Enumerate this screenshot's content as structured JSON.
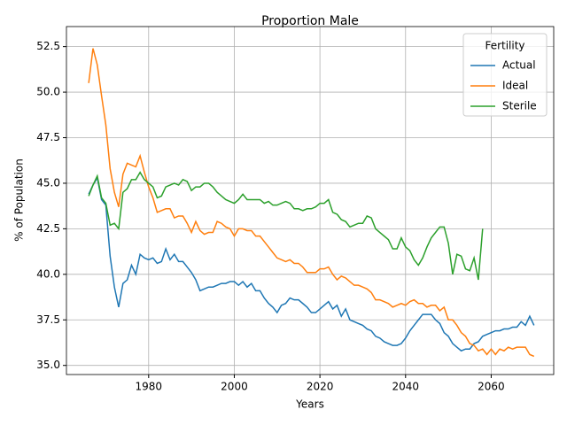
{
  "chart_data": {
    "type": "line",
    "title": "Proportion Male",
    "xlabel": "Years",
    "ylabel": "% of Population",
    "legend_title": "Fertility",
    "legend": "upper right",
    "grid": true,
    "x": [
      1966,
      1967,
      1968,
      1969,
      1970,
      1971,
      1972,
      1973,
      1974,
      1975,
      1976,
      1977,
      1978,
      1979,
      1980,
      1981,
      1982,
      1983,
      1984,
      1985,
      1986,
      1987,
      1988,
      1989,
      1990,
      1991,
      1992,
      1993,
      1994,
      1995,
      1996,
      1997,
      1998,
      1999,
      2000,
      2001,
      2002,
      2003,
      2004,
      2005,
      2006,
      2007,
      2008,
      2009,
      2010,
      2011,
      2012,
      2013,
      2014,
      2015,
      2016,
      2017,
      2018,
      2019,
      2020,
      2021,
      2022,
      2023,
      2024,
      2025,
      2026,
      2027,
      2028,
      2029,
      2030,
      2031,
      2032,
      2033,
      2034,
      2035,
      2036,
      2037,
      2038,
      2039,
      2040,
      2041,
      2042,
      2043,
      2044,
      2045,
      2046,
      2047,
      2048,
      2049,
      2050,
      2051,
      2052,
      2053,
      2054,
      2055,
      2056,
      2057,
      2058,
      2059,
      2060,
      2061,
      2062,
      2063,
      2064,
      2065,
      2066,
      2067,
      2068,
      2069,
      2070
    ],
    "series": [
      {
        "name": "Actual",
        "color": "#1f77b4",
        "values": [
          44.4,
          44.9,
          45.3,
          44.1,
          43.8,
          41.0,
          39.3,
          38.2,
          39.5,
          39.7,
          40.5,
          40.0,
          41.1,
          40.9,
          40.8,
          40.9,
          40.6,
          40.7,
          41.4,
          40.8,
          41.1,
          40.7,
          40.7,
          40.4,
          40.1,
          39.7,
          39.1,
          39.2,
          39.3,
          39.3,
          39.4,
          39.5,
          39.5,
          39.6,
          39.6,
          39.4,
          39.6,
          39.3,
          39.5,
          39.1,
          39.1,
          38.7,
          38.4,
          38.2,
          37.9,
          38.3,
          38.4,
          38.7,
          38.6,
          38.6,
          38.4,
          38.2,
          37.9,
          37.9,
          38.1,
          38.3,
          38.5,
          38.1,
          38.3,
          37.7,
          38.1,
          37.5,
          37.4,
          37.3,
          37.2,
          37.0,
          36.9,
          36.6,
          36.5,
          36.3,
          36.2,
          36.1,
          36.1,
          36.2,
          36.5,
          36.9,
          37.2,
          37.5,
          37.8,
          37.8,
          37.8,
          37.5,
          37.3,
          36.8,
          36.6,
          36.2,
          36.0,
          35.8,
          35.9,
          35.9,
          36.2,
          36.3,
          36.6,
          36.7,
          36.8,
          36.9,
          36.9,
          37.0,
          37.0,
          37.1,
          37.1,
          37.4,
          37.2,
          37.7,
          37.2
        ]
      },
      {
        "name": "Ideal",
        "color": "#ff7f0e",
        "values": [
          50.5,
          52.4,
          51.5,
          49.8,
          48.2,
          45.8,
          44.5,
          43.7,
          45.5,
          46.1,
          46.0,
          45.9,
          46.5,
          45.6,
          44.8,
          44.2,
          43.4,
          43.5,
          43.6,
          43.6,
          43.1,
          43.2,
          43.2,
          42.8,
          42.3,
          42.9,
          42.4,
          42.2,
          42.3,
          42.3,
          42.9,
          42.8,
          42.6,
          42.5,
          42.1,
          42.5,
          42.5,
          42.4,
          42.4,
          42.1,
          42.1,
          41.8,
          41.5,
          41.2,
          40.9,
          40.8,
          40.7,
          40.8,
          40.6,
          40.6,
          40.4,
          40.1,
          40.1,
          40.1,
          40.3,
          40.3,
          40.4,
          40.0,
          39.7,
          39.9,
          39.8,
          39.6,
          39.4,
          39.4,
          39.3,
          39.2,
          39.0,
          38.6,
          38.6,
          38.5,
          38.4,
          38.2,
          38.3,
          38.4,
          38.3,
          38.5,
          38.6,
          38.4,
          38.4,
          38.2,
          38.3,
          38.3,
          38.0,
          38.2,
          37.5,
          37.5,
          37.2,
          36.8,
          36.6,
          36.2,
          36.1,
          35.8,
          35.9,
          35.6,
          35.9,
          35.6,
          35.9,
          35.8,
          36.0,
          35.9,
          36.0,
          36.0,
          36.0,
          35.6,
          35.5
        ]
      },
      {
        "name": "Sterile",
        "color": "#2ca02c",
        "values": [
          44.3,
          44.9,
          45.4,
          44.2,
          43.9,
          42.7,
          42.8,
          42.5,
          44.5,
          44.7,
          45.2,
          45.2,
          45.6,
          45.2,
          45.0,
          44.8,
          44.2,
          44.3,
          44.8,
          44.9,
          45.0,
          44.9,
          45.2,
          45.1,
          44.6,
          44.8,
          44.8,
          45.0,
          45.0,
          44.8,
          44.5,
          44.3,
          44.1,
          44.0,
          43.9,
          44.1,
          44.4,
          44.1,
          44.1,
          44.1,
          44.1,
          43.9,
          44.0,
          43.8,
          43.8,
          43.9,
          44.0,
          43.9,
          43.6,
          43.6,
          43.5,
          43.6,
          43.6,
          43.7,
          43.9,
          43.9,
          44.1,
          43.4,
          43.3,
          43.0,
          42.9,
          42.6,
          42.7,
          42.8,
          42.8,
          43.2,
          43.1,
          42.5,
          42.3,
          42.1,
          41.9,
          41.4,
          41.4,
          42.0,
          41.5,
          41.3,
          40.8,
          40.5,
          40.9,
          41.5,
          42.0,
          42.3,
          42.6,
          42.6,
          41.7,
          40.0,
          41.1,
          41.0,
          40.3,
          40.2,
          40.9,
          39.7,
          42.5,
          null,
          null,
          null,
          null,
          null,
          null,
          null,
          null,
          null,
          null,
          null,
          null
        ]
      }
    ],
    "xlim": [
      1960.8,
      2074.6
    ],
    "xticks": [
      1980,
      2000,
      2020,
      2040,
      2060
    ],
    "ylim": [
      34.5,
      53.6
    ],
    "yticks": [
      {
        "value": 35,
        "label": "35.0"
      },
      37.5,
      {
        "value": 40,
        "label": "40.0"
      },
      42.5,
      {
        "value": 45,
        "label": "45.0"
      },
      47.5,
      {
        "value": 50,
        "label": "50.0"
      },
      52.5
    ]
  }
}
